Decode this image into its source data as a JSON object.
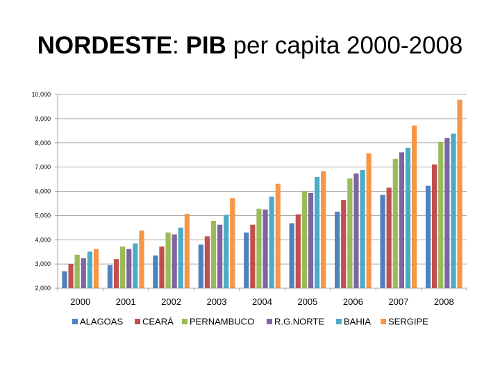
{
  "title": {
    "part1": "NORDESTE",
    "part2": ": ",
    "part3": "PIB",
    "part4": " per capita 2000-2008"
  },
  "chart_data": {
    "type": "bar",
    "title": "NORDESTE: PIB per capita 2000-2008",
    "xlabel": "",
    "ylabel": "",
    "ylim": [
      2000,
      10000
    ],
    "yticks": [
      2000,
      3000,
      4000,
      5000,
      6000,
      7000,
      8000,
      9000,
      10000
    ],
    "ytick_labels": [
      "2,000",
      "3,000",
      "4,000",
      "5,000",
      "6,000",
      "7,000",
      "8,000",
      "9,000",
      "10,000"
    ],
    "grid": true,
    "legend_position": "bottom",
    "categories": [
      "2000",
      "2001",
      "2002",
      "2003",
      "2004",
      "2005",
      "2006",
      "2007",
      "2008"
    ],
    "series": [
      {
        "name": "ALAGOAS",
        "color": "#4f81bd",
        "values": [
          2700,
          2950,
          3350,
          3800,
          4300,
          4680,
          5160,
          5850,
          6230
        ]
      },
      {
        "name": "CEARÁ",
        "color": "#c0504d",
        "values": [
          3000,
          3200,
          3720,
          4140,
          4620,
          5050,
          5640,
          6150,
          7110
        ]
      },
      {
        "name": "PERNAMBUCO",
        "color": "#9bbb59",
        "values": [
          3380,
          3720,
          4300,
          4780,
          5280,
          6000,
          6530,
          7340,
          8050
        ]
      },
      {
        "name": "R.G.NORTE",
        "color": "#8064a2",
        "values": [
          3240,
          3620,
          4220,
          4620,
          5250,
          5930,
          6740,
          7610,
          8200
        ]
      },
      {
        "name": "BAHIA",
        "color": "#4bacc6",
        "values": [
          3510,
          3850,
          4500,
          5030,
          5780,
          6590,
          6880,
          7800,
          8380
        ]
      },
      {
        "name": "SERGIPE",
        "color": "#f79646",
        "values": [
          3620,
          4380,
          5070,
          5720,
          6310,
          6830,
          7570,
          8720,
          9780
        ]
      }
    ]
  }
}
